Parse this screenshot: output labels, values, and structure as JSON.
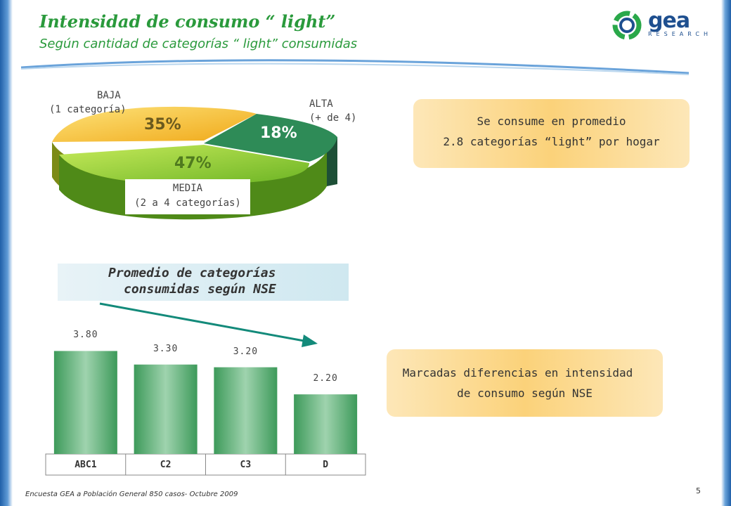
{
  "header": {
    "title": "Intensidad de consumo “ light”",
    "subtitle": "Según cantidad de categorías “ light” consumidas"
  },
  "logo": {
    "word": "gea",
    "sub": "RESEARCH"
  },
  "colors": {
    "green": "#2a9a3c",
    "pie_baja": "#f5b82a",
    "pie_media": "#8fcf2f",
    "pie_alta": "#2e8b57",
    "bar": "#3d9a5a",
    "arrow": "#138a7a"
  },
  "pie": {
    "baja": {
      "name": "BAJA",
      "desc": "(1 categoría)",
      "pct": "35%"
    },
    "alta": {
      "name": "ALTA",
      "desc": "(+ de 4)",
      "pct": "18%"
    },
    "media": {
      "name": "MEDIA",
      "desc": "(2 a 4 categorías)",
      "pct": "47%"
    }
  },
  "callout_top": {
    "line1": "Se consume en promedio",
    "line2": "2.8 categorías “light” por hogar"
  },
  "nse_box": {
    "line1": "Promedio de categorías",
    "line2": "consumidas según NSE"
  },
  "callout_bottom": {
    "line1": "Marcadas diferencias en intensidad",
    "line2": "de consumo según NSE"
  },
  "chart_data": [
    {
      "type": "pie",
      "categories": [
        "BAJA (1 categoría)",
        "MEDIA (2 a 4 categorías)",
        "ALTA (+ de 4)"
      ],
      "values": [
        35,
        47,
        18
      ],
      "title": ""
    },
    {
      "type": "bar",
      "categories": [
        "ABC1",
        "C2",
        "C3",
        "D"
      ],
      "values": [
        3.8,
        3.3,
        3.2,
        2.2
      ],
      "labels": [
        "3.80",
        "3.30",
        "3.20",
        "2.20"
      ],
      "title": "",
      "ylim": [
        0,
        5.6
      ]
    }
  ],
  "footer": {
    "source": "Encuesta GEA a Población General 850 casos- Octubre 2009",
    "page": "5"
  }
}
